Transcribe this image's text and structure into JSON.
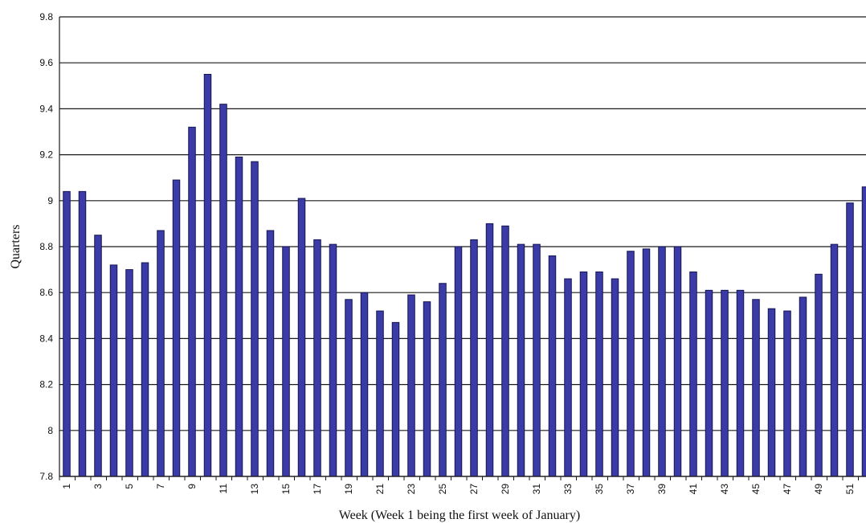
{
  "chart_data": {
    "type": "bar",
    "title": "",
    "xlabel": "Week (Week 1 being the first week of January)",
    "ylabel": "Quarters",
    "ylim": [
      7.8,
      9.8
    ],
    "yticks": [
      "7.8",
      "8",
      "8.2",
      "8.4",
      "8.6",
      "8.8",
      "9",
      "9.2",
      "9.4",
      "9.6",
      "9.8"
    ],
    "grid": true,
    "legend": "none",
    "bar_color": "#3b3ba8",
    "bar_edge_color": "#141450",
    "categories": [
      1,
      2,
      3,
      4,
      5,
      6,
      7,
      8,
      9,
      10,
      11,
      12,
      13,
      14,
      15,
      16,
      17,
      18,
      19,
      20,
      21,
      22,
      23,
      24,
      25,
      26,
      27,
      28,
      29,
      30,
      31,
      32,
      33,
      34,
      35,
      36,
      37,
      38,
      39,
      40,
      41,
      42,
      43,
      44,
      45,
      46,
      47,
      48,
      49,
      50,
      51,
      52
    ],
    "xtick_labels": [
      "1",
      "3",
      "5",
      "7",
      "9",
      "11",
      "13",
      "15",
      "17",
      "19",
      "21",
      "23",
      "25",
      "27",
      "29",
      "31",
      "33",
      "35",
      "37",
      "39",
      "41",
      "43",
      "45",
      "47",
      "49",
      "51"
    ],
    "values": [
      9.04,
      9.04,
      8.85,
      8.72,
      8.7,
      8.73,
      8.87,
      9.09,
      9.32,
      9.55,
      9.42,
      9.19,
      9.17,
      8.87,
      8.8,
      9.01,
      8.83,
      8.81,
      8.57,
      8.6,
      8.52,
      8.47,
      8.59,
      8.56,
      8.64,
      8.8,
      8.83,
      8.9,
      8.89,
      8.81,
      8.81,
      8.76,
      8.66,
      8.69,
      8.69,
      8.66,
      8.78,
      8.79,
      8.8,
      8.8,
      8.69,
      8.61,
      8.61,
      8.61,
      8.57,
      8.53,
      8.52,
      8.58,
      8.68,
      8.81,
      8.99,
      9.06
    ]
  }
}
